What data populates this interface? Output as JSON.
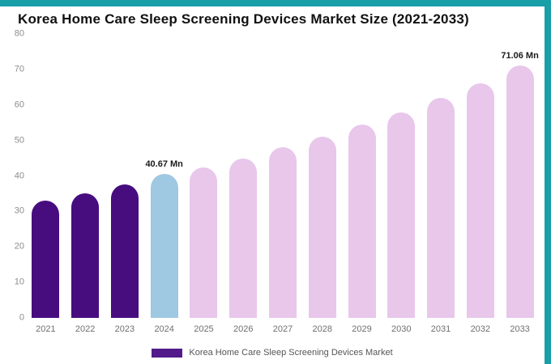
{
  "frame_color": "#189fa8",
  "title": "Korea Home Care Sleep Screening Devices Market Size (2021-2033)",
  "legend": {
    "label": "Korea Home Care Sleep Screening Devices Market",
    "swatch_color": "#531b8a"
  },
  "chart_data": {
    "type": "bar",
    "title": "Korea Home Care Sleep Screening Devices Market Size (2021-2033)",
    "xlabel": "",
    "ylabel": "",
    "categories": [
      "2021",
      "2022",
      "2023",
      "2024",
      "2025",
      "2026",
      "2027",
      "2028",
      "2029",
      "2030",
      "2031",
      "2032",
      "2033"
    ],
    "values": [
      33,
      35,
      37.5,
      40.67,
      42.5,
      45,
      48,
      51,
      54.5,
      58,
      62,
      66,
      71.06
    ],
    "value_labels": [
      "",
      "",
      "",
      "40.67 Mn",
      "",
      "",
      "",
      "",
      "",
      "",
      "",
      "",
      "71.06 Mn"
    ],
    "bar_roles": [
      "historical",
      "historical",
      "historical",
      "current",
      "forecast",
      "forecast",
      "forecast",
      "forecast",
      "forecast",
      "forecast",
      "forecast",
      "forecast",
      "forecast"
    ],
    "colors": {
      "historical": "#470d7f",
      "current": "#9fc8e2",
      "forecast": "#e8c7eb"
    },
    "yticks": [
      0,
      10,
      20,
      30,
      40,
      50,
      60,
      70,
      80
    ],
    "ylim": [
      0,
      80
    ],
    "grid": false,
    "legend_position": "bottom"
  }
}
